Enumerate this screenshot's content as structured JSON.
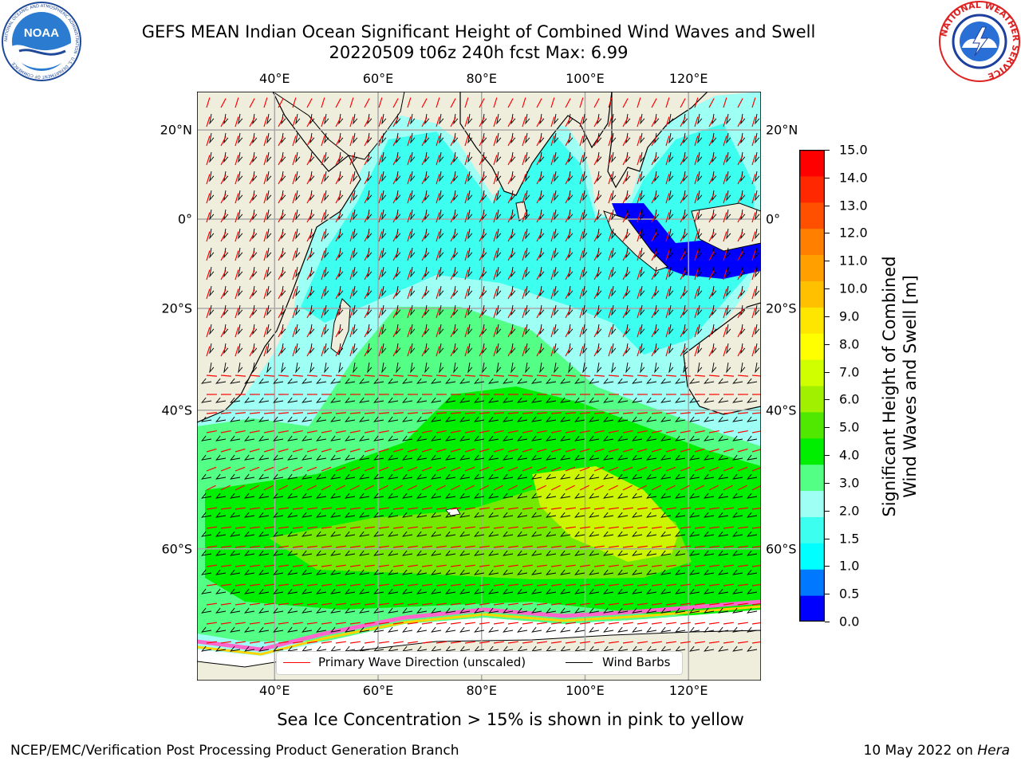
{
  "header": {
    "title_line1": "GEFS MEAN Indian Ocean Significant Height of Combined Wind Waves and Swell",
    "title_line2": "20220509 t06z 240h fcst   Max: 6.99"
  },
  "logos": {
    "noaa": {
      "text": "NOAA",
      "ring_text": "NATIONAL OCEANIC AND ATMOSPHERIC ADMINISTRATION · U.S. DEPARTMENT OF COMMERCE"
    },
    "nws": {
      "ring_text": "NATIONAL WEATHER SERVICE"
    }
  },
  "map": {
    "lon_ticks": [
      "40°E",
      "60°E",
      "80°E",
      "100°E",
      "120°E"
    ],
    "lat_ticks": [
      "20°N",
      "0°",
      "20°S",
      "40°S",
      "60°S"
    ],
    "lon_values": [
      40,
      60,
      80,
      100,
      120
    ],
    "lat_values": [
      20,
      0,
      -20,
      -40,
      -60
    ],
    "extent": {
      "lon": [
        25,
        134
      ],
      "lat": [
        -72,
        28
      ]
    },
    "gridlines": true,
    "land_color": "#efeedd",
    "ice_color": "#ffffff",
    "field_colors": {
      "calm": "#0000ff",
      "low": "#00ffff",
      "mid": "#9efff4",
      "moderate": "#53ff84",
      "high": "#00ee00",
      "higher": "#74e900",
      "peak": "#cbf500"
    }
  },
  "colorbar": {
    "title_line1": "Significant Height of Combined",
    "title_line2": "Wind Waves and Swell [m]",
    "labels": [
      "15.0",
      "14.0",
      "13.0",
      "12.0",
      "11.0",
      "10.0",
      "9.0",
      "8.0",
      "7.0",
      "6.0",
      "5.0",
      "4.0",
      "3.0",
      "2.0",
      "1.5",
      "1.0",
      "0.5",
      "0.0"
    ],
    "colors": [
      "#0000ff",
      "#0078ff",
      "#00ffff",
      "#3cfff0",
      "#9efff4",
      "#53ff84",
      "#00ee00",
      "#50e800",
      "#a0f000",
      "#d0ff00",
      "#ffff00",
      "#ffe600",
      "#ffc000",
      "#ffa000",
      "#ff8000",
      "#ff5000",
      "#ff2800",
      "#ff0000"
    ]
  },
  "legend": {
    "primary_label": "Primary Wave Direction (unscaled)",
    "primary_color": "#ff0000",
    "barbs_label": "Wind Barbs",
    "barbs_color": "#000000"
  },
  "footnote": "Sea Ice Concentration > 15% is shown in pink to yellow",
  "credits": {
    "left": "NCEP/EMC/Verification Post Processing Product Generation Branch",
    "right_prefix": "10 May 2022 on ",
    "right_machine": "Hera"
  }
}
